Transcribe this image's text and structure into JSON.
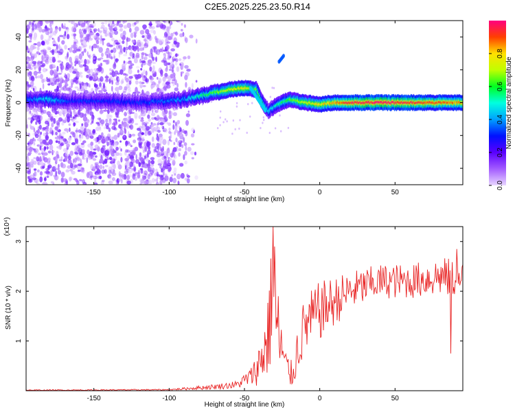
{
  "title": "C2E5.2025.225.23.50.R14",
  "chart_data": [
    {
      "type": "heatmap",
      "xlabel": "Height of straight line (km)",
      "ylabel": "Frequency (Hz)",
      "xlim": [
        -195,
        95
      ],
      "ylim": [
        -50,
        50
      ],
      "x_ticks": [
        -150,
        -100,
        -50,
        0,
        50
      ],
      "y_ticks": [
        -40,
        -20,
        0,
        20,
        40
      ],
      "colorbar": {
        "label": "Normalized spectral amplitude",
        "range": [
          0,
          1
        ],
        "ticks": [
          "0.0",
          "0.2",
          "0.4",
          "0.6",
          "0.8"
        ],
        "colors": [
          "#e8d6ff",
          "#a35cff",
          "#5a00ff",
          "#0010ff",
          "#00a0ff",
          "#00ffe0",
          "#00ff20",
          "#c0ff00",
          "#ffe000",
          "#ff4000",
          "#ff0080"
        ]
      },
      "ridge": [
        {
          "x": -193,
          "f": 2,
          "amp": 0.35
        },
        {
          "x": -180,
          "f": 2,
          "amp": 0.45
        },
        {
          "x": -165,
          "f": 1,
          "amp": 0.3
        },
        {
          "x": -140,
          "f": 1,
          "amp": 0.3
        },
        {
          "x": -120,
          "f": 0,
          "amp": 0.3
        },
        {
          "x": -100,
          "f": 1,
          "amp": 0.35
        },
        {
          "x": -90,
          "f": 2,
          "amp": 0.4
        },
        {
          "x": -80,
          "f": 4,
          "amp": 0.5
        },
        {
          "x": -70,
          "f": 6,
          "amp": 0.6
        },
        {
          "x": -60,
          "f": 8,
          "amp": 0.7
        },
        {
          "x": -50,
          "f": 9,
          "amp": 0.75
        },
        {
          "x": -42,
          "f": 8,
          "amp": 0.6
        },
        {
          "x": -38,
          "f": 0,
          "amp": 0.5
        },
        {
          "x": -34,
          "f": -5,
          "amp": 0.45
        },
        {
          "x": -28,
          "f": -1,
          "amp": 0.5
        },
        {
          "x": -20,
          "f": 2,
          "amp": 0.6
        },
        {
          "x": -10,
          "f": 0,
          "amp": 0.7
        },
        {
          "x": 0,
          "f": -1,
          "amp": 0.75
        },
        {
          "x": 10,
          "f": 0,
          "amp": 0.8
        },
        {
          "x": 20,
          "f": 0,
          "amp": 0.9
        },
        {
          "x": 40,
          "f": 0,
          "amp": 0.95
        },
        {
          "x": 60,
          "f": 0,
          "amp": 0.9
        },
        {
          "x": 80,
          "f": 0,
          "amp": 0.85
        },
        {
          "x": 95,
          "f": 0,
          "amp": 0.8
        }
      ],
      "isolated_feature": {
        "x": -27,
        "f": 25,
        "amp": 0.35
      }
    },
    {
      "type": "line",
      "xlabel": "Height of straight line (km)",
      "ylabel": "SNR (10 * v/v)",
      "y_multiplier": "(x10⁴)",
      "xlim": [
        -195,
        95
      ],
      "ylim": [
        0,
        3.3
      ],
      "x_ticks": [
        -150,
        -100,
        -50,
        0,
        50
      ],
      "y_ticks": [
        1,
        2,
        3
      ],
      "color": "#e82020",
      "envelope": [
        {
          "x": -195,
          "mean": 0.01,
          "spread": 0.01
        },
        {
          "x": -100,
          "mean": 0.02,
          "spread": 0.01
        },
        {
          "x": -80,
          "mean": 0.06,
          "spread": 0.04
        },
        {
          "x": -70,
          "mean": 0.08,
          "spread": 0.05
        },
        {
          "x": -55,
          "mean": 0.12,
          "spread": 0.08
        },
        {
          "x": -45,
          "mean": 0.3,
          "spread": 0.2
        },
        {
          "x": -40,
          "mean": 0.55,
          "spread": 0.45
        },
        {
          "x": -35,
          "mean": 1.0,
          "spread": 0.9
        },
        {
          "x": -31,
          "mean": 2.0,
          "spread": 1.3
        },
        {
          "x": -28,
          "mean": 1.2,
          "spread": 1.0
        },
        {
          "x": -23,
          "mean": 0.5,
          "spread": 0.4
        },
        {
          "x": -18,
          "mean": 0.3,
          "spread": 0.25
        },
        {
          "x": -15,
          "mean": 0.8,
          "spread": 0.5
        },
        {
          "x": -10,
          "mean": 1.3,
          "spread": 0.6
        },
        {
          "x": 0,
          "mean": 1.6,
          "spread": 0.6
        },
        {
          "x": 10,
          "mean": 1.8,
          "spread": 0.5
        },
        {
          "x": 20,
          "mean": 2.0,
          "spread": 0.4
        },
        {
          "x": 40,
          "mean": 2.2,
          "spread": 0.35
        },
        {
          "x": 60,
          "mean": 2.2,
          "spread": 0.35
        },
        {
          "x": 80,
          "mean": 2.3,
          "spread": 0.4
        },
        {
          "x": 95,
          "mean": 2.2,
          "spread": 0.4
        }
      ],
      "peaks": [
        {
          "x": -31,
          "y": 3.3
        },
        {
          "x": -30,
          "y": 2.9
        },
        {
          "x": 87,
          "y": 0.75
        },
        {
          "x": 91,
          "y": 2.85
        }
      ]
    }
  ]
}
